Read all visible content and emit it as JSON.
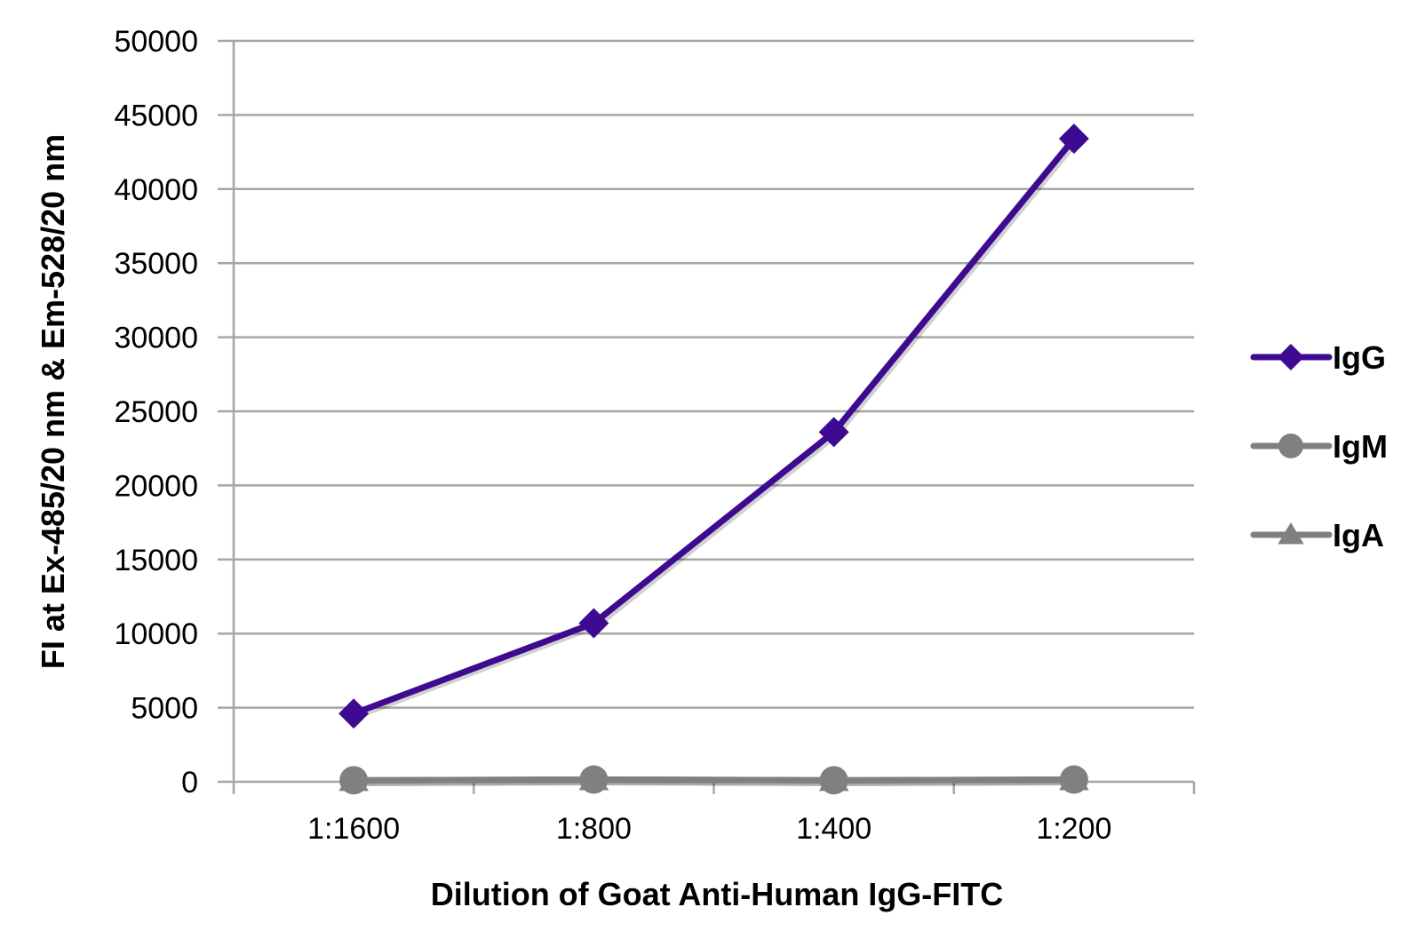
{
  "chart_data": {
    "type": "line",
    "title": "",
    "xlabel": "Dilution of Goat Anti-Human IgG-FITC",
    "ylabel": "FI at Ex-485/20 nm & Em-528/20 nm",
    "categories": [
      "1:1600",
      "1:800",
      "1:400",
      "1:200"
    ],
    "ylim": [
      0,
      50000
    ],
    "yticks": [
      0,
      5000,
      10000,
      15000,
      20000,
      25000,
      30000,
      35000,
      40000,
      45000,
      50000
    ],
    "grid": "horizontal",
    "legend_position": "right",
    "series": [
      {
        "name": "IgG",
        "values": [
          4600,
          10700,
          23600,
          43400
        ],
        "color": "#3d0a91",
        "marker": "diamond"
      },
      {
        "name": "IgM",
        "values": [
          100,
          150,
          100,
          150
        ],
        "color": "#808080",
        "marker": "circle"
      },
      {
        "name": "IgA",
        "values": [
          100,
          150,
          100,
          150
        ],
        "color": "#808080",
        "marker": "triangle"
      }
    ]
  }
}
